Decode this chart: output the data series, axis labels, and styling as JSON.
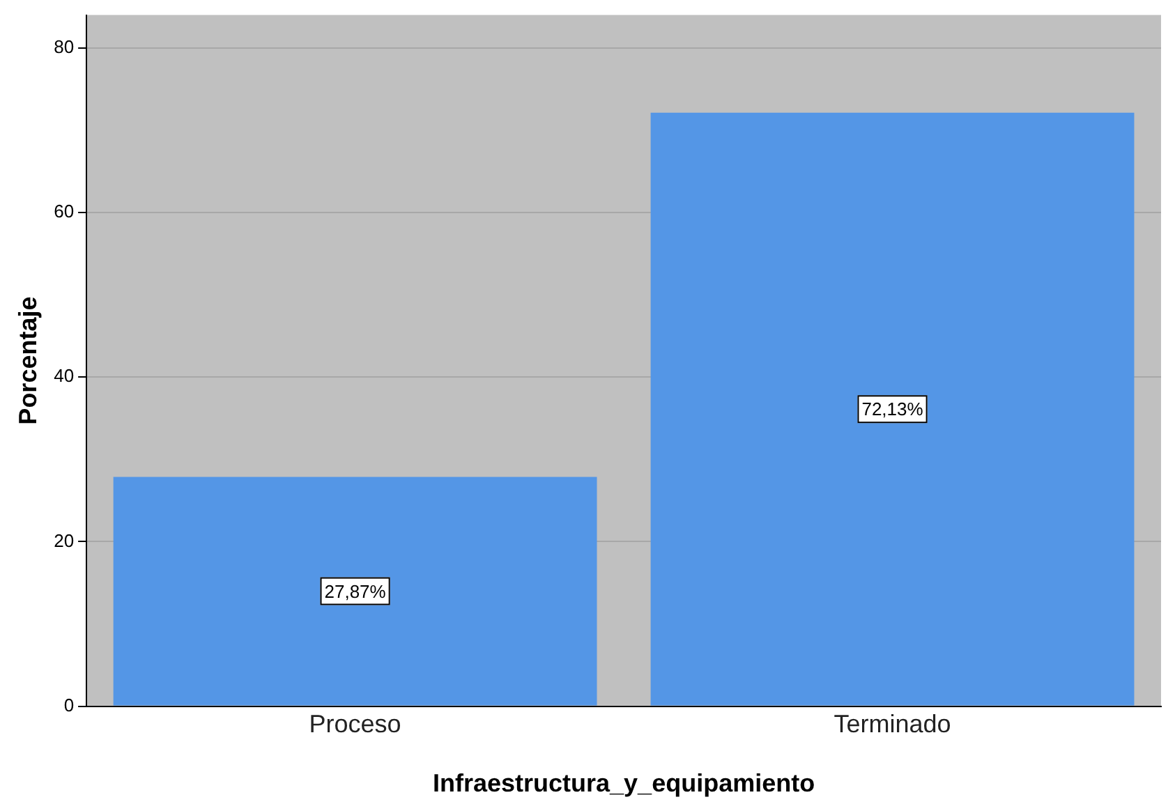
{
  "chart_data": {
    "type": "bar",
    "xlabel": "Infraestructura_y_equipamiento",
    "ylabel": "Porcentaje",
    "categories": [
      "Proceso",
      "Terminado"
    ],
    "values": [
      27.87,
      72.13
    ],
    "color": "#5496e6",
    "value_labels": [
      "27,87%",
      "72,13%"
    ],
    "ylim": [
      0,
      84
    ],
    "yticks": [
      0,
      20,
      40,
      60,
      80
    ],
    "grid": "y"
  }
}
